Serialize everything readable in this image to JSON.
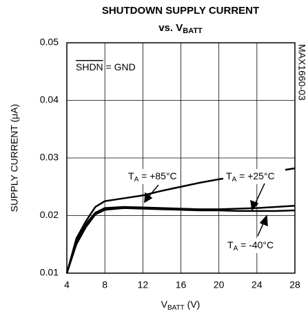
{
  "chart_data": {
    "type": "line",
    "title": "SHUTDOWN SUPPLY CURRENT",
    "subtitle": [
      "vs. V",
      "BATT"
    ],
    "x_label": [
      "V",
      "BATT",
      " (V)"
    ],
    "y_label": "SUPPLY CURRENT (μA)",
    "x": [
      4,
      5,
      6,
      7,
      8,
      10,
      12,
      14,
      16,
      18,
      20,
      22,
      24,
      26,
      28
    ],
    "series": [
      {
        "name": [
          "T",
          "A",
          " = +85°C"
        ],
        "color": "#000000",
        "values": [
          0.01,
          0.016,
          0.019,
          0.0215,
          0.0225,
          0.023,
          0.0235,
          0.0243,
          0.025,
          0.0257,
          0.0263,
          0.0268,
          0.0273,
          0.0277,
          0.0282
        ]
      },
      {
        "name": [
          "T",
          "A",
          " = +25°C"
        ],
        "color": "#000000",
        "values": [
          0.01,
          0.0155,
          0.0185,
          0.0205,
          0.0213,
          0.0215,
          0.0214,
          0.0213,
          0.0212,
          0.0211,
          0.0211,
          0.0212,
          0.0213,
          0.0215,
          0.0217
        ]
      },
      {
        "name": [
          "T",
          "A",
          " = -40°C"
        ],
        "color": "#000000",
        "values": [
          0.01,
          0.015,
          0.018,
          0.0202,
          0.021,
          0.0213,
          0.0212,
          0.0211,
          0.021,
          0.0209,
          0.0209,
          0.0208,
          0.0208,
          0.0208,
          0.0209
        ]
      }
    ],
    "xlim": [
      4,
      28
    ],
    "xticks": [
      4,
      8,
      12,
      16,
      20,
      24,
      28
    ],
    "ylim": [
      0.01,
      0.05
    ],
    "yticks": [
      0.01,
      0.02,
      0.03,
      0.04,
      0.05
    ],
    "grid": true,
    "annotations": [
      [
        "SHDN",
        " = GND"
      ],
      "MAX1660-03"
    ]
  }
}
